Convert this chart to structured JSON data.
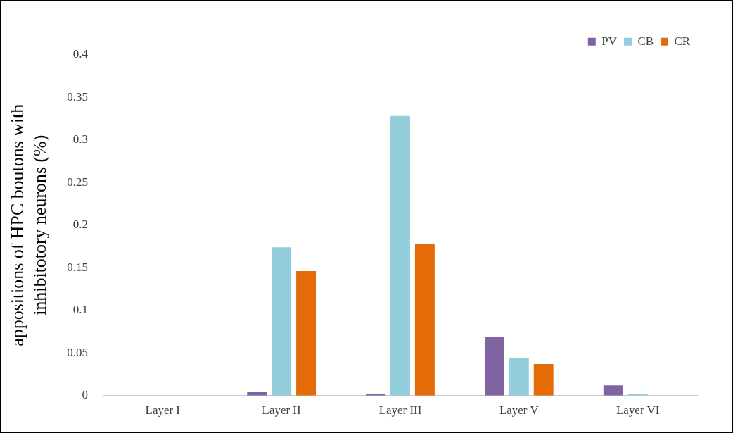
{
  "chart_data": {
    "type": "bar",
    "ylabel": "appositions of HPC boutons with inhibitotory neurons (%)",
    "categories": [
      "Layer I",
      "Layer II",
      "Layer III",
      "Layer V",
      "Layer VI"
    ],
    "series": [
      {
        "name": "PV",
        "color": "#8064a2",
        "values": [
          0,
          0.004,
          0.002,
          0.069,
          0.012
        ]
      },
      {
        "name": "CB",
        "color": "#92cddc",
        "values": [
          0,
          0.174,
          0.328,
          0.044,
          0.002
        ]
      },
      {
        "name": "CR",
        "color": "#e36c09",
        "values": [
          0,
          0.146,
          0.178,
          0.037,
          0
        ]
      }
    ],
    "ylim": [
      0,
      0.4
    ],
    "yticks": [
      0,
      0.05,
      0.1,
      0.15,
      0.2,
      0.25,
      0.3,
      0.35,
      0.4
    ],
    "grid": false,
    "legend": "top right"
  }
}
